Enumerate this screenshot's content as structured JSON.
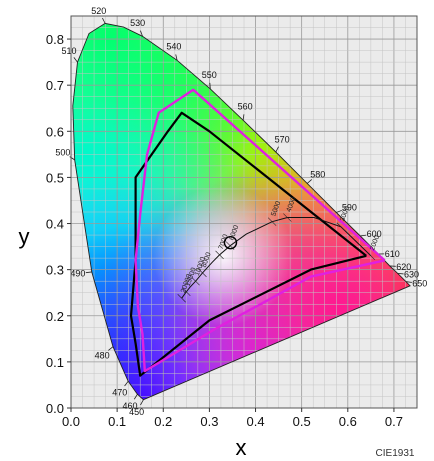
{
  "chart_data": {
    "type": "scatter",
    "title": "",
    "xlabel": "x",
    "ylabel": "y",
    "xlim": [
      0.0,
      0.75
    ],
    "ylim": [
      0.0,
      0.85
    ],
    "x_ticks": [
      "0.0",
      "0.1",
      "0.2",
      "0.3",
      "0.4",
      "0.5",
      "0.6",
      "0.7"
    ],
    "y_ticks": [
      "0.0",
      "0.1",
      "0.2",
      "0.3",
      "0.4",
      "0.5",
      "0.6",
      "0.7",
      "0.8"
    ],
    "grid": true,
    "credit": "CIE1931",
    "spectral_locus": [
      {
        "nm": "450",
        "x": 0.157,
        "y": 0.018,
        "label": "450"
      },
      {
        "nm": "460",
        "x": 0.144,
        "y": 0.03,
        "label": "460"
      },
      {
        "nm": "470",
        "x": 0.124,
        "y": 0.058,
        "label": "470"
      },
      {
        "nm": "480",
        "x": 0.091,
        "y": 0.133,
        "label": "480"
      },
      {
        "nm": "490",
        "x": 0.045,
        "y": 0.295,
        "label": "490"
      },
      {
        "nm": "500",
        "x": 0.008,
        "y": 0.538,
        "label": "500"
      },
      {
        "nm": "505",
        "x": 0.004,
        "y": 0.655,
        "label": ""
      },
      {
        "nm": "510",
        "x": 0.014,
        "y": 0.75,
        "label": "510"
      },
      {
        "nm": "515",
        "x": 0.039,
        "y": 0.812,
        "label": ""
      },
      {
        "nm": "520",
        "x": 0.074,
        "y": 0.834,
        "label": "520"
      },
      {
        "nm": "525",
        "x": 0.114,
        "y": 0.826,
        "label": ""
      },
      {
        "nm": "530",
        "x": 0.155,
        "y": 0.806,
        "label": "530"
      },
      {
        "nm": "540",
        "x": 0.23,
        "y": 0.754,
        "label": "540"
      },
      {
        "nm": "550",
        "x": 0.302,
        "y": 0.692,
        "label": "550"
      },
      {
        "nm": "560",
        "x": 0.373,
        "y": 0.624,
        "label": "560"
      },
      {
        "nm": "570",
        "x": 0.444,
        "y": 0.555,
        "label": "570"
      },
      {
        "nm": "580",
        "x": 0.512,
        "y": 0.487,
        "label": "580"
      },
      {
        "nm": "590",
        "x": 0.575,
        "y": 0.424,
        "label": "590"
      },
      {
        "nm": "600",
        "x": 0.627,
        "y": 0.373,
        "label": "600"
      },
      {
        "nm": "610",
        "x": 0.666,
        "y": 0.334,
        "label": "610"
      },
      {
        "nm": "620",
        "x": 0.691,
        "y": 0.308,
        "label": "620"
      },
      {
        "nm": "630",
        "x": 0.708,
        "y": 0.292,
        "label": "630"
      },
      {
        "nm": "650",
        "x": 0.726,
        "y": 0.274,
        "label": "650"
      },
      {
        "nm": "700",
        "x": 0.735,
        "y": 0.265,
        "label": ""
      }
    ],
    "planckian_locus": {
      "points": [
        [
          0.65,
          0.33
        ],
        [
          0.585,
          0.393
        ],
        [
          0.527,
          0.413
        ],
        [
          0.469,
          0.413
        ],
        [
          0.436,
          0.404
        ],
        [
          0.38,
          0.377
        ],
        [
          0.345,
          0.352
        ],
        [
          0.322,
          0.332
        ],
        [
          0.306,
          0.316
        ],
        [
          0.285,
          0.293
        ],
        [
          0.27,
          0.275
        ],
        [
          0.258,
          0.262
        ],
        [
          0.25,
          0.252
        ],
        [
          0.24,
          0.238
        ]
      ],
      "labels": [
        "2000",
        "3000",
        "4000",
        "5000",
        "6000",
        "7000",
        "8000",
        "10000",
        "15000",
        "20000"
      ]
    },
    "series": [
      {
        "name": "",
        "color": "#000000",
        "points": [
          [
            0.64,
            0.33
          ],
          [
            0.3,
            0.6
          ],
          [
            0.24,
            0.64
          ],
          [
            0.21,
            0.6
          ],
          [
            0.14,
            0.5
          ],
          [
            0.14,
            0.32
          ],
          [
            0.13,
            0.2
          ],
          [
            0.14,
            0.14
          ],
          [
            0.15,
            0.07
          ],
          [
            0.3,
            0.19
          ],
          [
            0.52,
            0.3
          ],
          [
            0.64,
            0.33
          ]
        ]
      },
      {
        "name": "",
        "color": "#e020e0",
        "points": [
          [
            0.68,
            0.32
          ],
          [
            0.265,
            0.69
          ],
          [
            0.19,
            0.64
          ],
          [
            0.165,
            0.55
          ],
          [
            0.15,
            0.42
          ],
          [
            0.14,
            0.32
          ],
          [
            0.145,
            0.22
          ],
          [
            0.155,
            0.16
          ],
          [
            0.16,
            0.08
          ],
          [
            0.31,
            0.17
          ],
          [
            0.52,
            0.285
          ],
          [
            0.68,
            0.32
          ]
        ]
      }
    ],
    "white_point": {
      "x": 0.3457,
      "y": 0.3585
    }
  }
}
